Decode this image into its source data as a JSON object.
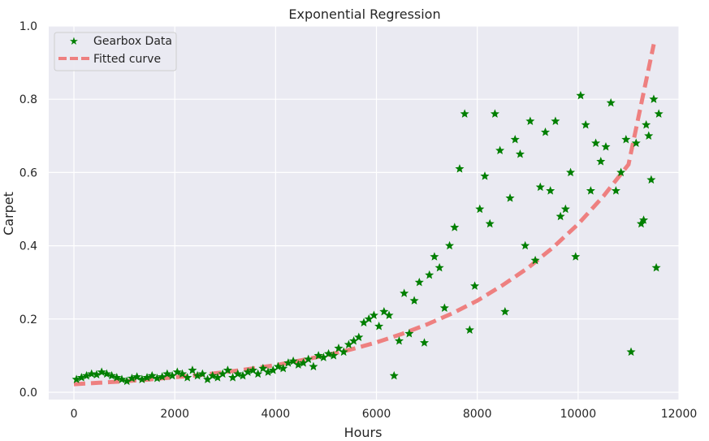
{
  "chart_data": {
    "type": "scatter",
    "title": "Exponential Regression",
    "xlabel": "Hours",
    "ylabel": "Carpet",
    "xlim": [
      -500,
      12000
    ],
    "ylim": [
      -0.02,
      1.0
    ],
    "xticks": [
      0,
      2000,
      4000,
      6000,
      8000,
      10000,
      12000
    ],
    "xtick_labels": [
      "0",
      "2000",
      "4000",
      "6000",
      "8000",
      "10000",
      "12000"
    ],
    "yticks": [
      0.0,
      0.2,
      0.4,
      0.6,
      0.8,
      1.0
    ],
    "ytick_labels": [
      "0.0",
      "0.2",
      "0.4",
      "0.6",
      "0.8",
      "1.0"
    ],
    "grid": true,
    "background": "#eaeaf2",
    "legend": {
      "placement": "top-left",
      "entries": [
        "Gearbox Data",
        "Fitted curve"
      ]
    },
    "series": [
      {
        "name": "Gearbox Data",
        "kind": "scatter",
        "marker": "star",
        "color": "#007f00",
        "points": [
          [
            50,
            0.035
          ],
          [
            150,
            0.04
          ],
          [
            250,
            0.045
          ],
          [
            350,
            0.05
          ],
          [
            450,
            0.048
          ],
          [
            550,
            0.055
          ],
          [
            650,
            0.05
          ],
          [
            750,
            0.045
          ],
          [
            850,
            0.04
          ],
          [
            950,
            0.035
          ],
          [
            1050,
            0.03
          ],
          [
            1150,
            0.038
          ],
          [
            1250,
            0.042
          ],
          [
            1350,
            0.035
          ],
          [
            1450,
            0.04
          ],
          [
            1550,
            0.045
          ],
          [
            1650,
            0.038
          ],
          [
            1750,
            0.042
          ],
          [
            1850,
            0.05
          ],
          [
            1950,
            0.045
          ],
          [
            2050,
            0.055
          ],
          [
            2150,
            0.05
          ],
          [
            2250,
            0.04
          ],
          [
            2350,
            0.06
          ],
          [
            2450,
            0.045
          ],
          [
            2550,
            0.05
          ],
          [
            2650,
            0.035
          ],
          [
            2750,
            0.045
          ],
          [
            2850,
            0.04
          ],
          [
            2950,
            0.05
          ],
          [
            3050,
            0.06
          ],
          [
            3150,
            0.04
          ],
          [
            3250,
            0.05
          ],
          [
            3350,
            0.045
          ],
          [
            3450,
            0.055
          ],
          [
            3550,
            0.06
          ],
          [
            3650,
            0.05
          ],
          [
            3750,
            0.065
          ],
          [
            3850,
            0.055
          ],
          [
            3950,
            0.06
          ],
          [
            4050,
            0.07
          ],
          [
            4150,
            0.065
          ],
          [
            4250,
            0.08
          ],
          [
            4350,
            0.085
          ],
          [
            4450,
            0.075
          ],
          [
            4550,
            0.08
          ],
          [
            4650,
            0.09
          ],
          [
            4750,
            0.07
          ],
          [
            4850,
            0.1
          ],
          [
            4950,
            0.095
          ],
          [
            5050,
            0.105
          ],
          [
            5150,
            0.1
          ],
          [
            5250,
            0.12
          ],
          [
            5350,
            0.11
          ],
          [
            5450,
            0.13
          ],
          [
            5550,
            0.14
          ],
          [
            5650,
            0.15
          ],
          [
            5750,
            0.19
          ],
          [
            5850,
            0.2
          ],
          [
            5950,
            0.21
          ],
          [
            6050,
            0.18
          ],
          [
            6150,
            0.22
          ],
          [
            6250,
            0.21
          ],
          [
            6350,
            0.045
          ],
          [
            6450,
            0.14
          ],
          [
            6550,
            0.27
          ],
          [
            6650,
            0.16
          ],
          [
            6750,
            0.25
          ],
          [
            6850,
            0.3
          ],
          [
            6950,
            0.135
          ],
          [
            7050,
            0.32
          ],
          [
            7150,
            0.37
          ],
          [
            7250,
            0.34
          ],
          [
            7350,
            0.23
          ],
          [
            7450,
            0.4
          ],
          [
            7550,
            0.45
          ],
          [
            7650,
            0.61
          ],
          [
            7750,
            0.76
          ],
          [
            7850,
            0.17
          ],
          [
            7950,
            0.29
          ],
          [
            8050,
            0.5
          ],
          [
            8150,
            0.59
          ],
          [
            8250,
            0.46
          ],
          [
            8350,
            0.76
          ],
          [
            8450,
            0.66
          ],
          [
            8550,
            0.22
          ],
          [
            8650,
            0.53
          ],
          [
            8750,
            0.69
          ],
          [
            8850,
            0.65
          ],
          [
            8950,
            0.4
          ],
          [
            9050,
            0.74
          ],
          [
            9150,
            0.36
          ],
          [
            9250,
            0.56
          ],
          [
            9350,
            0.71
          ],
          [
            9450,
            0.55
          ],
          [
            9550,
            0.74
          ],
          [
            9650,
            0.48
          ],
          [
            9750,
            0.5
          ],
          [
            9850,
            0.6
          ],
          [
            9950,
            0.37
          ],
          [
            10050,
            0.81
          ],
          [
            10150,
            0.73
          ],
          [
            10250,
            0.55
          ],
          [
            10350,
            0.68
          ],
          [
            10450,
            0.63
          ],
          [
            10550,
            0.67
          ],
          [
            10650,
            0.79
          ],
          [
            10750,
            0.55
          ],
          [
            10850,
            0.6
          ],
          [
            10950,
            0.69
          ],
          [
            11050,
            0.11
          ],
          [
            11150,
            0.68
          ],
          [
            11250,
            0.46
          ],
          [
            11350,
            0.73
          ],
          [
            11450,
            0.58
          ],
          [
            11550,
            0.34
          ],
          [
            11500,
            0.8
          ],
          [
            11600,
            0.76
          ],
          [
            11400,
            0.7
          ],
          [
            11300,
            0.47
          ]
        ]
      },
      {
        "name": "Fitted curve",
        "kind": "line",
        "style": "dashed",
        "color": "#ee8080",
        "x": [
          0,
          500,
          1000,
          1500,
          2000,
          2500,
          3000,
          3500,
          4000,
          4500,
          5000,
          5500,
          6000,
          6500,
          7000,
          7500,
          8000,
          8500,
          9000,
          9500,
          10000,
          10500,
          11000,
          11500
        ],
        "y": [
          0.022,
          0.026,
          0.03,
          0.035,
          0.041,
          0.047,
          0.055,
          0.064,
          0.074,
          0.087,
          0.101,
          0.117,
          0.136,
          0.159,
          0.185,
          0.215,
          0.25,
          0.292,
          0.339,
          0.395,
          0.459,
          0.535,
          0.622,
          0.95
        ]
      }
    ]
  }
}
